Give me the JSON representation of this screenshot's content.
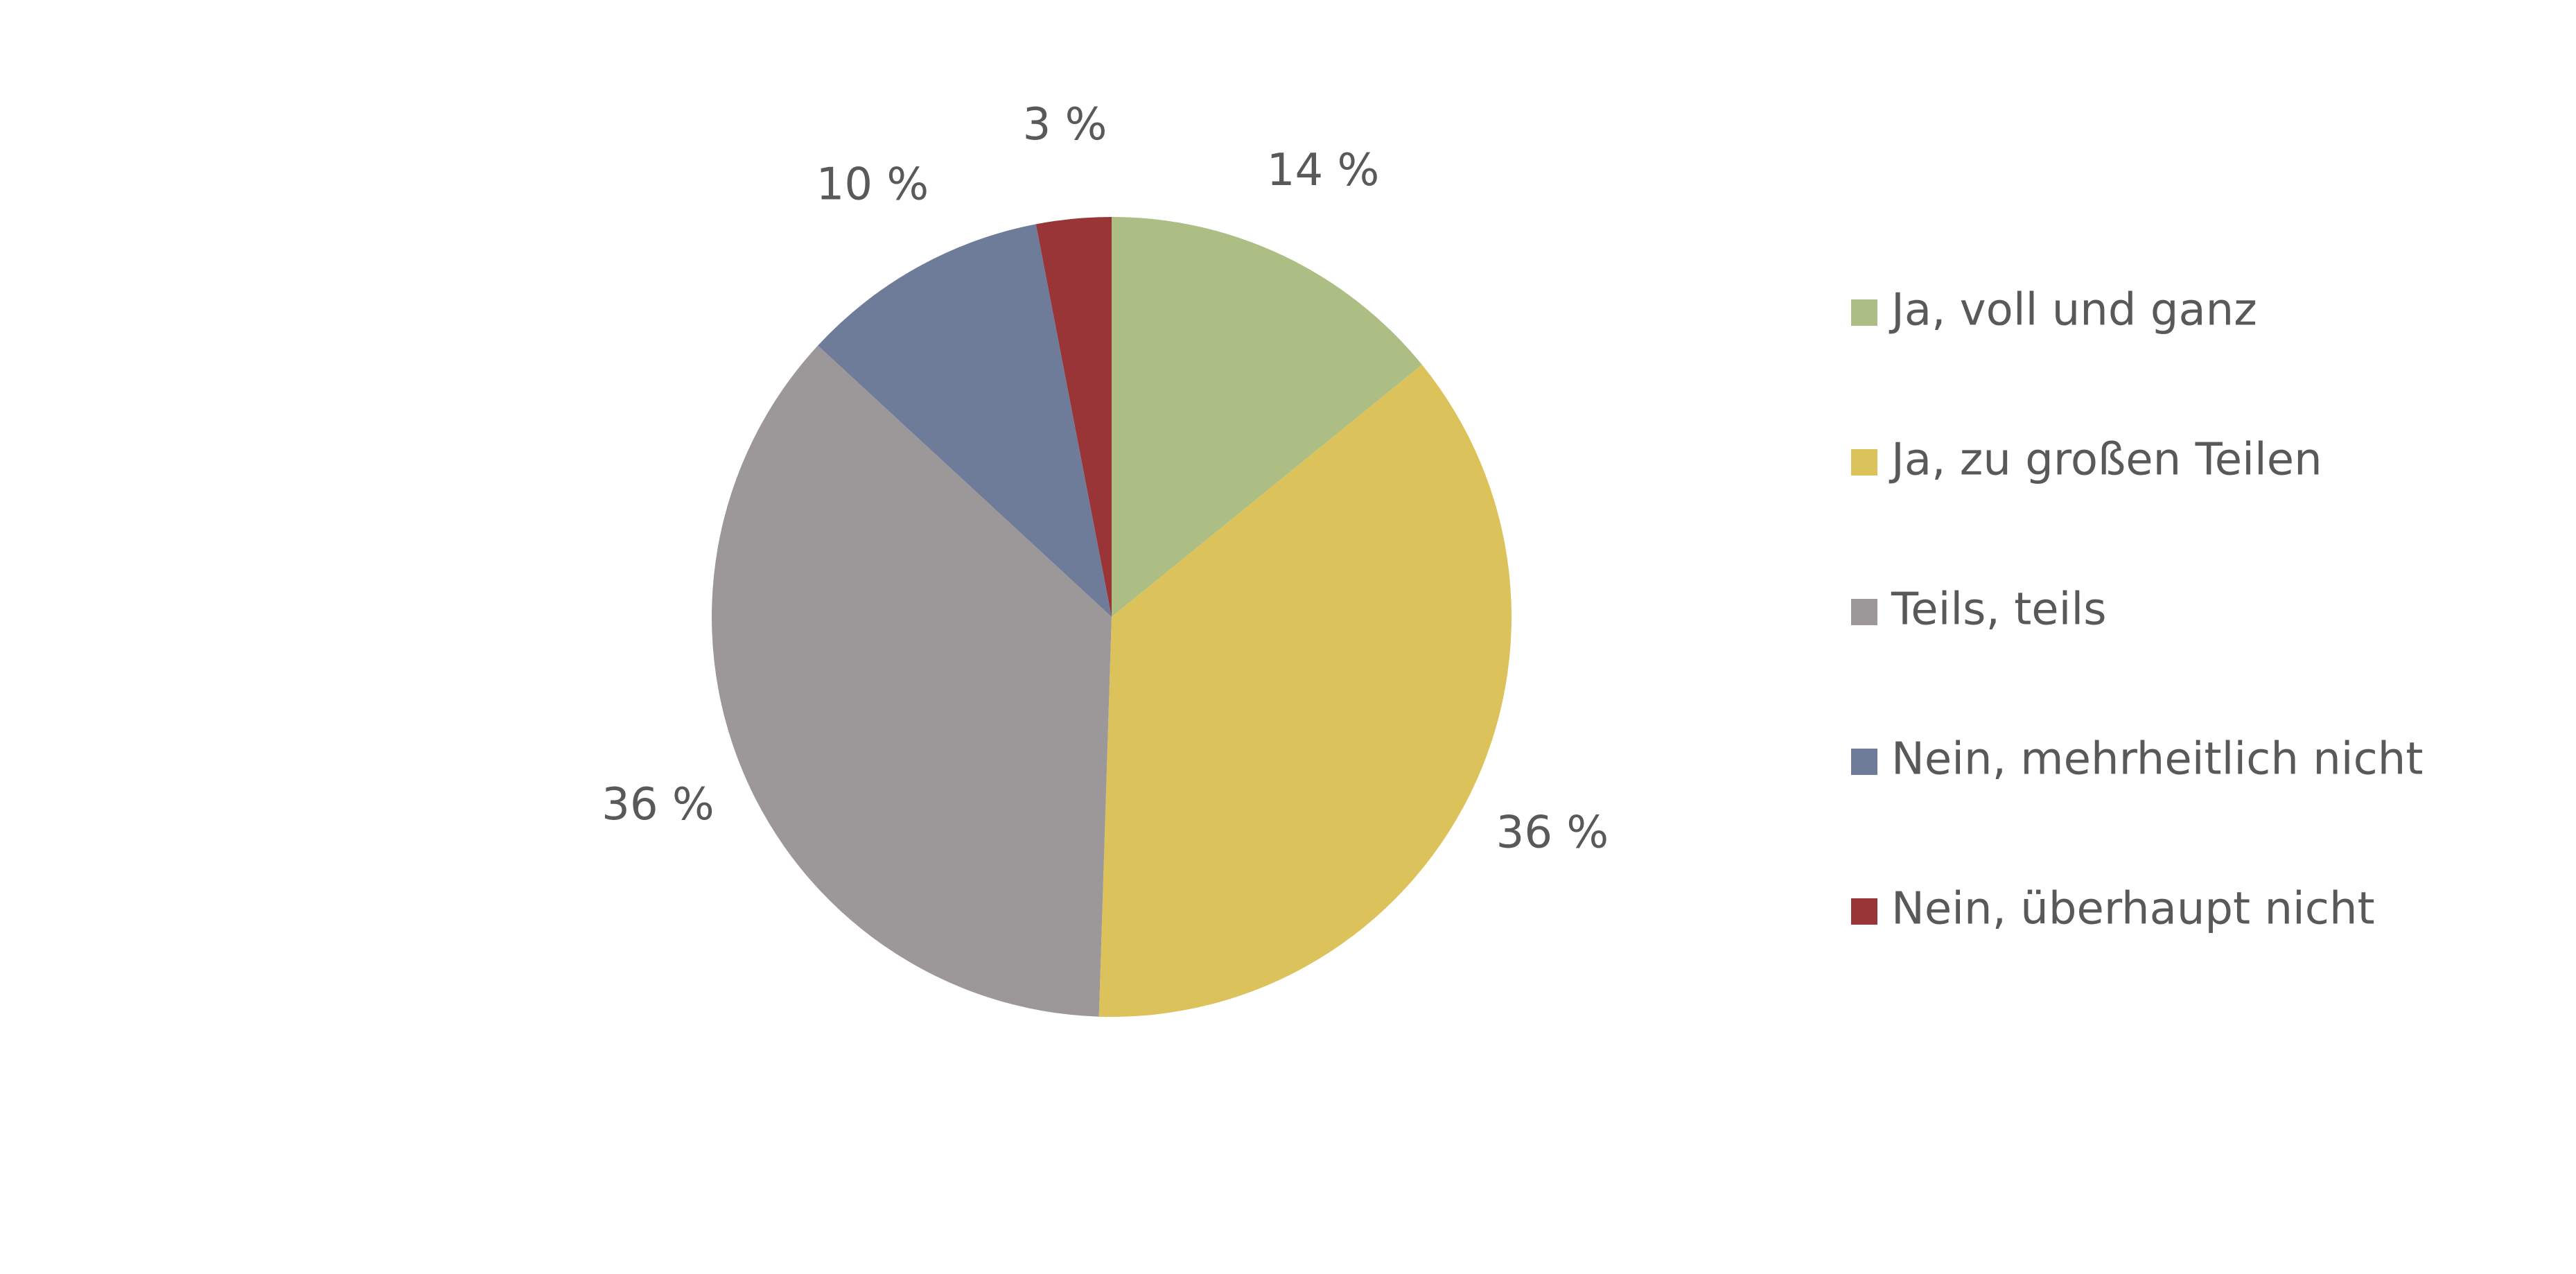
{
  "chart_data": {
    "type": "pie",
    "categories": [
      "Ja, voll und ganz",
      "Ja, zu großen Teilen",
      "Teils, teils",
      "Nein, mehrheitlich nicht",
      "Nein, überhaupt nicht"
    ],
    "values": [
      14,
      36,
      36,
      10,
      3
    ],
    "value_labels": [
      "14 %",
      "36 %",
      "36 %",
      "10 %",
      "3 %"
    ],
    "colors": [
      "#adbe84",
      "#dcc25a",
      "#9c9899",
      "#6e7b99",
      "#993536"
    ],
    "legend": "right"
  }
}
